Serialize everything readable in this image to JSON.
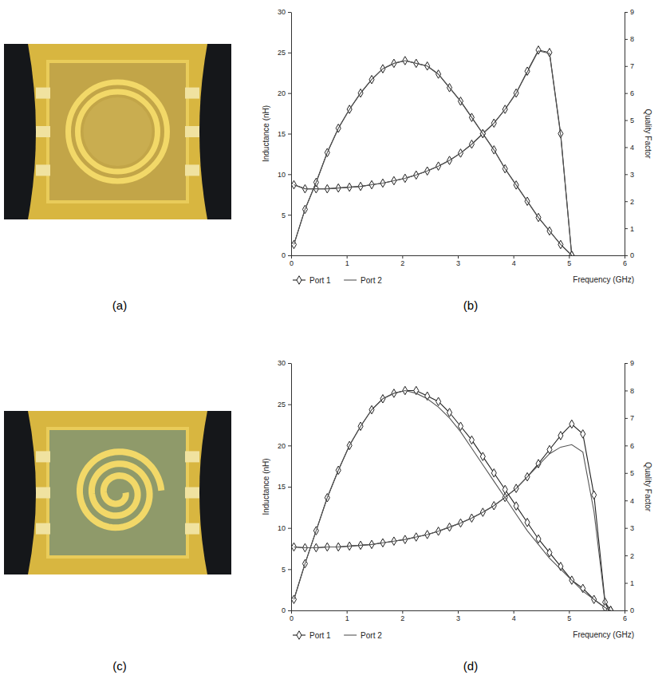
{
  "panel_labels": [
    "(a)",
    "(b)",
    "(c)",
    "(d)"
  ],
  "chart_data": [
    {
      "type": "line",
      "x_label": "Frequency (GHz)",
      "y_label": "Inductance (nH)",
      "y2_label": "Quality Factor",
      "x": [
        0.05,
        0.25,
        0.45,
        0.65,
        0.85,
        1.05,
        1.25,
        1.45,
        1.65,
        1.85,
        2.05,
        2.25,
        2.45,
        2.65,
        2.85,
        3.05,
        3.25,
        3.45,
        3.65,
        3.85,
        4.05,
        4.25,
        4.45,
        4.65,
        4.85,
        5.05
      ],
      "xlim": [
        0,
        6
      ],
      "xticks": [
        0,
        1,
        2,
        3,
        4,
        5,
        6
      ],
      "ylim": [
        0,
        30
      ],
      "yticks": [
        0,
        5,
        10,
        15,
        20,
        25,
        30
      ],
      "y2lim": [
        0,
        9
      ],
      "y2ticks": [
        0,
        1,
        2,
        3,
        4,
        5,
        6,
        7,
        8,
        9
      ],
      "grid": false,
      "legend": "below",
      "series": [
        {
          "name": "Port 1",
          "color": "#222222",
          "marker": "diamond",
          "line_style": "solid",
          "values": [
            8.7,
            8.2,
            8.2,
            8.2,
            8.3,
            8.4,
            8.5,
            8.7,
            8.9,
            9.2,
            9.5,
            9.9,
            10.4,
            11.0,
            11.7,
            12.6,
            13.7,
            15.0,
            16.3,
            18.0,
            20.0,
            22.7,
            25.3,
            25.0,
            15.0,
            0
          ]
        },
        {
          "name": "Port 2",
          "color": "#555555",
          "marker": "none",
          "line_style": "solid",
          "values": [
            8.7,
            8.2,
            8.2,
            8.2,
            8.3,
            8.4,
            8.5,
            8.7,
            8.9,
            9.2,
            9.5,
            9.9,
            10.4,
            11.0,
            11.7,
            12.6,
            13.7,
            15.0,
            16.3,
            18.0,
            20.0,
            22.6,
            25.2,
            24.9,
            14.8,
            0
          ]
        },
        {
          "name": "Port 1",
          "color": "#222222",
          "marker": "diamond",
          "line_style": "solid",
          "axis": "y2",
          "values": [
            0.4,
            1.7,
            2.7,
            3.8,
            4.7,
            5.4,
            6.0,
            6.5,
            6.9,
            7.1,
            7.2,
            7.1,
            7.0,
            6.7,
            6.2,
            5.7,
            5.1,
            4.5,
            3.9,
            3.2,
            2.6,
            2.0,
            1.4,
            0.9,
            0.4,
            0
          ]
        },
        {
          "name": "Port 2",
          "color": "#555555",
          "marker": "none",
          "line_style": "solid",
          "axis": "y2",
          "values": [
            0.4,
            1.7,
            2.7,
            3.8,
            4.7,
            5.4,
            6.0,
            6.5,
            6.9,
            7.1,
            7.2,
            7.1,
            7.0,
            6.7,
            6.2,
            5.7,
            5.1,
            4.5,
            3.9,
            3.2,
            2.6,
            2.0,
            1.4,
            0.9,
            0.4,
            0
          ]
        }
      ]
    },
    {
      "type": "line",
      "x_label": "Frequency (GHz)",
      "y_label": "Inductance (nH)",
      "y2_label": "Quality Factor",
      "x": [
        0.05,
        0.25,
        0.45,
        0.65,
        0.85,
        1.05,
        1.25,
        1.45,
        1.65,
        1.85,
        2.05,
        2.25,
        2.45,
        2.65,
        2.85,
        3.05,
        3.25,
        3.45,
        3.65,
        3.85,
        4.05,
        4.25,
        4.45,
        4.65,
        4.85,
        5.05,
        5.25,
        5.45,
        5.65,
        5.75
      ],
      "xlim": [
        0,
        6
      ],
      "xticks": [
        0,
        1,
        2,
        3,
        4,
        5,
        6
      ],
      "ylim": [
        0,
        30
      ],
      "yticks": [
        0,
        5,
        10,
        15,
        20,
        25,
        30
      ],
      "y2lim": [
        0,
        9
      ],
      "y2ticks": [
        0,
        1,
        2,
        3,
        4,
        5,
        6,
        7,
        8,
        9
      ],
      "grid": false,
      "legend": "below",
      "series": [
        {
          "name": "Port 1",
          "color": "#222222",
          "marker": "diamond",
          "line_style": "solid",
          "values": [
            7.7,
            7.6,
            7.6,
            7.7,
            7.7,
            7.8,
            7.9,
            8.0,
            8.2,
            8.4,
            8.6,
            8.9,
            9.2,
            9.6,
            10.1,
            10.6,
            11.2,
            11.9,
            12.7,
            13.7,
            14.8,
            16.2,
            17.8,
            19.5,
            21.2,
            22.6,
            21.4,
            14.0,
            1.0,
            0
          ]
        },
        {
          "name": "Port 2",
          "color": "#555555",
          "marker": "none",
          "line_style": "solid",
          "values": [
            7.7,
            7.6,
            7.6,
            7.7,
            7.7,
            7.8,
            7.9,
            8.0,
            8.2,
            8.4,
            8.6,
            8.9,
            9.2,
            9.6,
            10.1,
            10.6,
            11.2,
            11.9,
            12.7,
            13.7,
            14.8,
            16.2,
            17.6,
            19.0,
            19.8,
            20.1,
            19.2,
            12.0,
            0.8,
            0
          ]
        },
        {
          "name": "Port 1",
          "color": "#222222",
          "marker": "diamond",
          "line_style": "solid",
          "axis": "y2",
          "values": [
            0.4,
            1.7,
            2.9,
            4.1,
            5.1,
            6.0,
            6.7,
            7.3,
            7.7,
            7.9,
            8.0,
            8.0,
            7.8,
            7.6,
            7.2,
            6.7,
            6.2,
            5.6,
            5.0,
            4.4,
            3.8,
            3.2,
            2.6,
            2.1,
            1.6,
            1.1,
            0.8,
            0.4,
            0.1,
            0
          ]
        },
        {
          "name": "Port 2",
          "color": "#555555",
          "marker": "none",
          "line_style": "solid",
          "axis": "y2",
          "values": [
            0.4,
            1.7,
            2.9,
            4.1,
            5.1,
            6.0,
            6.7,
            7.3,
            7.7,
            7.9,
            8.0,
            7.9,
            7.7,
            7.4,
            7.0,
            6.5,
            5.9,
            5.3,
            4.7,
            4.1,
            3.5,
            2.9,
            2.4,
            1.9,
            1.5,
            1.1,
            0.7,
            0.4,
            0.1,
            0
          ]
        }
      ]
    }
  ]
}
